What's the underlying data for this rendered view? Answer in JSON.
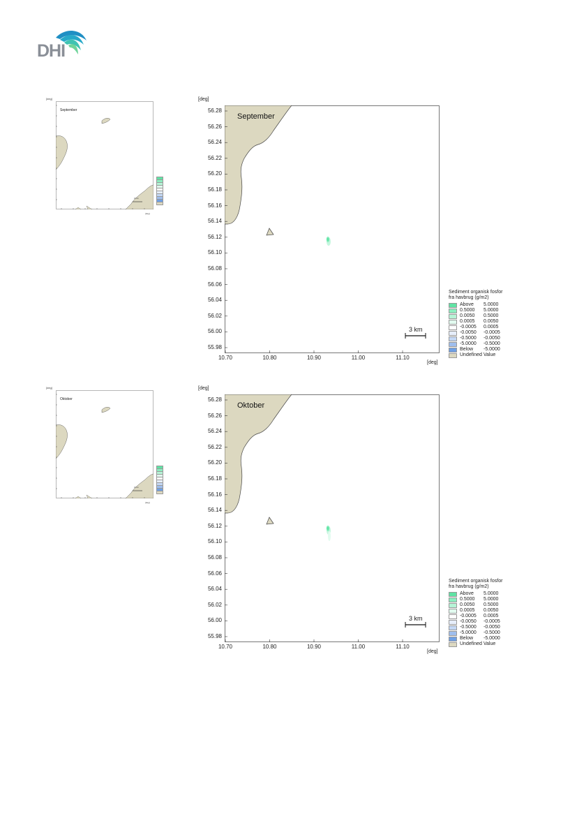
{
  "logo": {
    "text": "DHI"
  },
  "panels": [
    {
      "title": "September",
      "thumb_title": "September",
      "ylabel": "[deg]",
      "xlabel": "[deg]",
      "scale_bar": "3 km",
      "thumb_scale_bar": "10 km",
      "yticks": [
        "56.28",
        "56.26",
        "56.24",
        "56.22",
        "56.20",
        "56.18",
        "56.16",
        "56.14",
        "56.12",
        "56.10",
        "56.08",
        "56.06",
        "56.04",
        "56.02",
        "56.00",
        "55.98"
      ],
      "xticks": [
        "10.70",
        "10.80",
        "10.90",
        "11.00",
        "11.10"
      ],
      "legend_title": [
        "Sediment organisk fosfor",
        "fra havbrug (g/m2)"
      ]
    },
    {
      "title": "Oktober",
      "thumb_title": "Oktober",
      "ylabel": "[deg]",
      "xlabel": "[deg]",
      "scale_bar": "3 km",
      "thumb_scale_bar": "10 km",
      "yticks": [
        "56.28",
        "56.26",
        "56.24",
        "56.22",
        "56.20",
        "56.18",
        "56.16",
        "56.14",
        "56.12",
        "56.10",
        "56.08",
        "56.06",
        "56.04",
        "56.02",
        "56.00",
        "55.98"
      ],
      "xticks": [
        "10.70",
        "10.80",
        "10.90",
        "11.00",
        "11.10"
      ],
      "legend_title": [
        "Sediment organisk fosfor",
        "fra havbrug (g/m2)"
      ]
    }
  ],
  "legend_items": [
    {
      "label": "Above",
      "value": "5.0000",
      "color": "#5fe3a4"
    },
    {
      "label": "0.5000",
      "value": "5.0000",
      "color": "#8ceec0"
    },
    {
      "label": "0.0050",
      "value": "0.5000",
      "color": "#b6f4d6"
    },
    {
      "label": "0.0005",
      "value": "0.0050",
      "color": "#e2fbef"
    },
    {
      "label": "-0.0005",
      "value": "0.0005",
      "color": "#ffffff"
    },
    {
      "label": "-0.0050",
      "value": "-0.0005",
      "color": "#e6eefb"
    },
    {
      "label": "-0.5000",
      "value": "-0.0050",
      "color": "#c3d7f4"
    },
    {
      "label": "-5.0000",
      "value": "-0.5000",
      "color": "#9fbeee"
    },
    {
      "label": "Below",
      "value": "-5.0000",
      "color": "#6fa0e4"
    }
  ],
  "undefined_item": {
    "label": "Undefined Value",
    "color": "#dcd8c0"
  },
  "colors": {
    "land": "#dcd8c0",
    "coast": "#444444",
    "plume": "#5fe3a4"
  }
}
